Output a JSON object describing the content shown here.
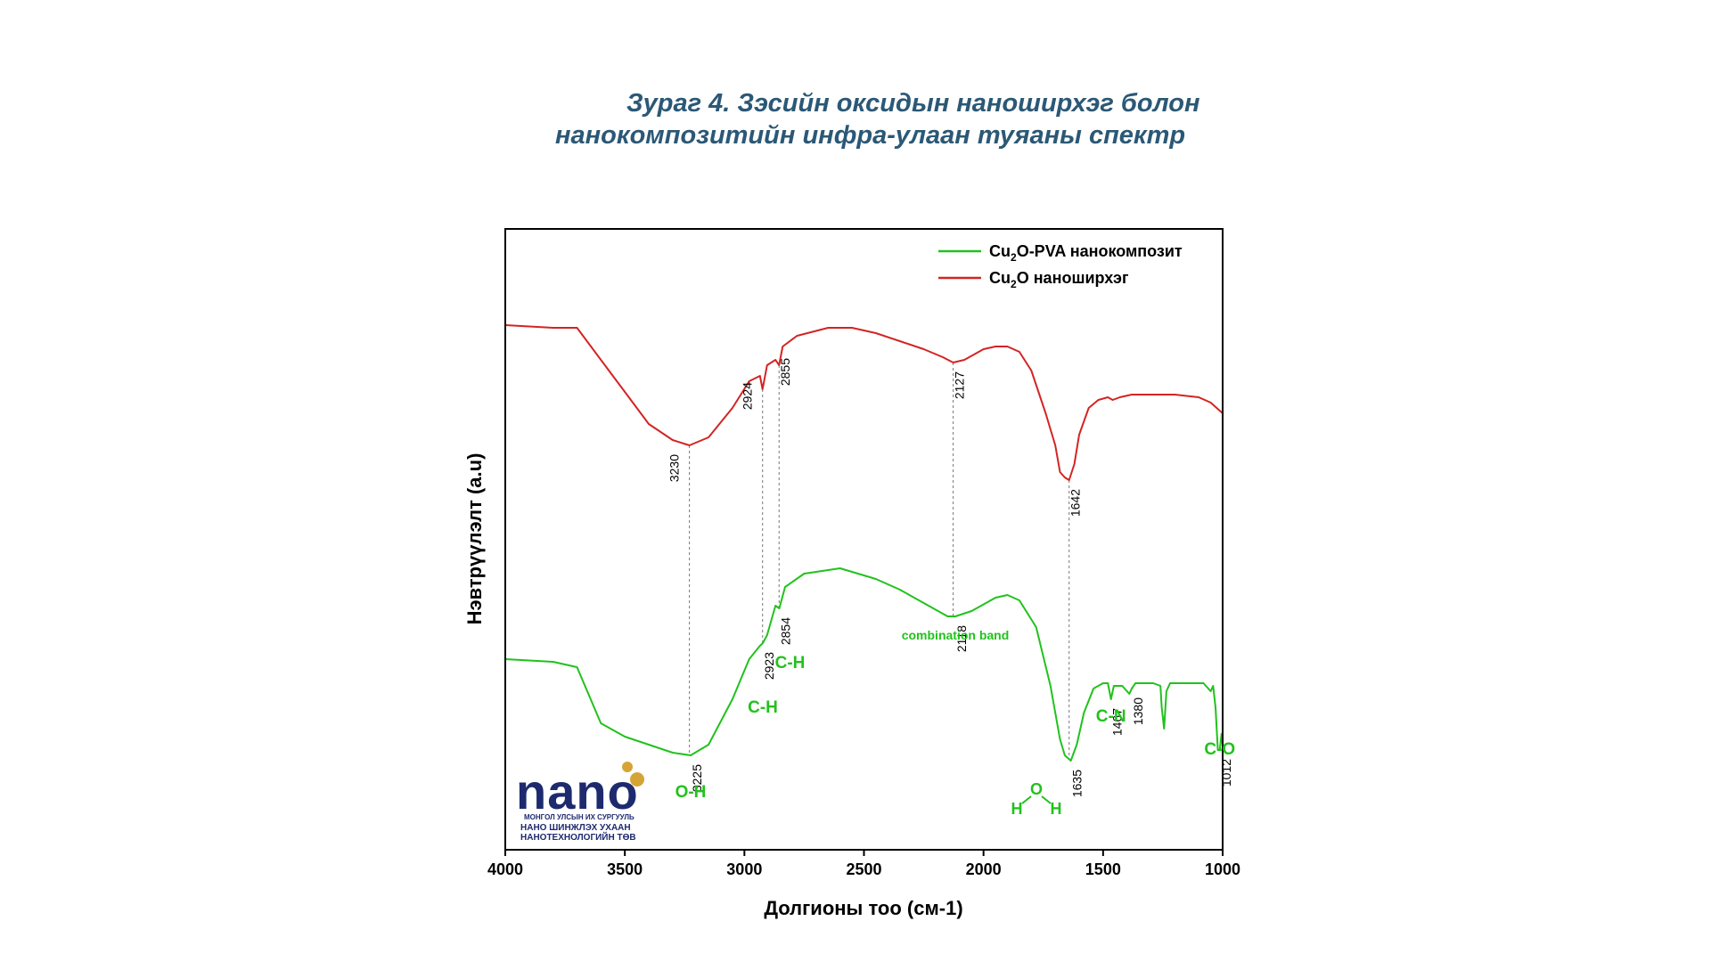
{
  "title": {
    "line1": "Зураг 4. Зэсийн оксидын наноширхэг болон",
    "line2": "нанокомпозитийн инфра-улаан туяаны спектр"
  },
  "colors": {
    "green": "#21c21c",
    "red": "#d32424",
    "title": "#2b5876",
    "navy": "#1e2a6e",
    "gold": "#d4a536"
  },
  "chart_data": {
    "type": "line",
    "xlabel": "Долгионы тоо (см-1)",
    "ylabel": "Нэвтрүүлэлт (a.u)",
    "xlim": [
      4000,
      1000
    ],
    "x_reversed": true,
    "xticks": [
      4000,
      3500,
      3000,
      2500,
      2000,
      1500,
      1000
    ],
    "grid": false,
    "legend_position": "top-right",
    "series": [
      {
        "name": "Cu2O-PVA нанокомпозит",
        "color": "#21c21c",
        "x": [
          4000,
          3800,
          3700,
          3600,
          3500,
          3400,
          3300,
          3225,
          3150,
          3050,
          2980,
          2935,
          2923,
          2905,
          2870,
          2854,
          2830,
          2750,
          2600,
          2450,
          2350,
          2250,
          2150,
          2118,
          2050,
          1950,
          1900,
          1850,
          1780,
          1720,
          1680,
          1660,
          1635,
          1610,
          1580,
          1540,
          1500,
          1480,
          1467,
          1455,
          1420,
          1390,
          1380,
          1365,
          1320,
          1290,
          1260,
          1255,
          1245,
          1235,
          1220,
          1150,
          1080,
          1050,
          1040,
          1030,
          1020,
          1012,
          1005,
          1000
        ],
        "y": [
          40,
          39,
          37,
          16,
          11,
          8,
          5,
          4,
          8,
          25,
          40,
          45,
          46,
          49,
          60,
          59,
          67,
          72,
          74,
          70,
          66,
          61,
          56,
          56,
          58,
          63,
          64,
          62,
          52,
          30,
          10,
          4,
          2,
          8,
          20,
          29,
          31,
          31,
          25,
          30,
          30,
          27,
          29,
          31,
          31,
          31,
          30,
          22,
          14,
          28,
          31,
          31,
          31,
          28,
          30,
          22,
          6,
          6,
          12,
          8
        ]
      },
      {
        "name": "Cu2O наноширхэг",
        "color": "#d32424",
        "x": [
          4000,
          3800,
          3700,
          3600,
          3500,
          3400,
          3300,
          3230,
          3150,
          3050,
          2980,
          2935,
          2924,
          2905,
          2870,
          2855,
          2840,
          2780,
          2650,
          2550,
          2450,
          2350,
          2250,
          2170,
          2127,
          2080,
          2000,
          1950,
          1900,
          1850,
          1800,
          1740,
          1700,
          1680,
          1660,
          1642,
          1620,
          1600,
          1560,
          1520,
          1480,
          1460,
          1430,
          1380,
          1300,
          1200,
          1100,
          1050,
          1000
        ],
        "y": [
          85,
          84,
          84,
          72,
          60,
          48,
          42,
          40,
          43,
          54,
          64,
          66,
          61,
          70,
          72,
          70,
          77,
          81,
          84,
          84,
          82,
          79,
          76,
          73,
          71,
          72,
          76,
          77,
          77,
          75,
          68,
          52,
          40,
          30,
          28,
          27,
          33,
          44,
          54,
          57,
          58,
          57,
          58,
          59,
          59,
          59,
          58,
          56,
          52
        ]
      }
    ],
    "legend": [
      {
        "base": "Cu",
        "sub": "2",
        "rest": "O-PVA нанокомпозит"
      },
      {
        "base": "Cu",
        "sub": "2",
        "rest": "O наноширхэг"
      }
    ],
    "peak_markers": [
      {
        "label": "3230",
        "x": 3230,
        "series": "red"
      },
      {
        "label": "2924",
        "x": 2924,
        "series": "red"
      },
      {
        "label": "2855",
        "x": 2855,
        "series": "red"
      },
      {
        "label": "2127",
        "x": 2127,
        "series": "red"
      },
      {
        "label": "1642",
        "x": 1642,
        "series": "red"
      },
      {
        "label": "3225",
        "x": 3225,
        "series": "green"
      },
      {
        "label": "2923",
        "x": 2923,
        "series": "green"
      },
      {
        "label": "2854",
        "x": 2854,
        "series": "green"
      },
      {
        "label": "2118",
        "x": 2118,
        "series": "green"
      },
      {
        "label": "1635",
        "x": 1635,
        "series": "green"
      },
      {
        "label": "1467",
        "x": 1467,
        "series": "green"
      },
      {
        "label": "1380",
        "x": 1380,
        "series": "green"
      },
      {
        "label": "1012",
        "x": 1012,
        "series": "green"
      }
    ],
    "annotations": [
      {
        "text": "O-H",
        "x": 3225
      },
      {
        "text": "C-H",
        "x": 2923
      },
      {
        "text": "C-H",
        "x": 2854
      },
      {
        "text": "combination band",
        "x": 2118
      },
      {
        "text": "C-N",
        "x": 1467
      },
      {
        "text": "C-O",
        "x": 1012
      }
    ],
    "water_molecule": {
      "left": "H",
      "center": "O",
      "right": "H"
    }
  },
  "logo": {
    "text": "nano",
    "line1": "МОНГОЛ УЛСЫН ИХ СУРГУУЛЬ",
    "line2": "НАНО ШИНЖЛЭХ УХААН",
    "line3": "НАНОТЕХНОЛОГИЙН ТӨВ"
  }
}
